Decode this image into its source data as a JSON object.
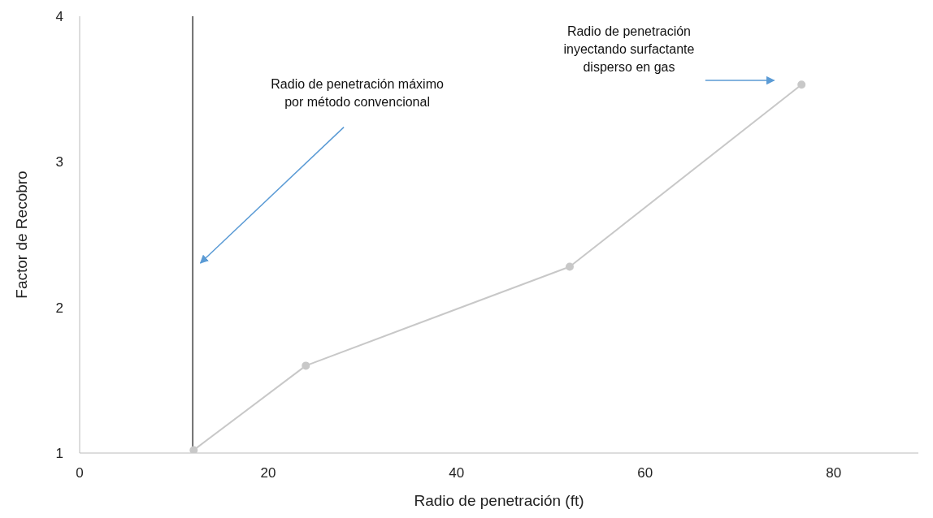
{
  "chart_data": {
    "type": "line",
    "xlabel": "Radio de penetración (ft)",
    "ylabel": "Factor de Recobro",
    "x": [
      12.1,
      24,
      52,
      76.6
    ],
    "series": [
      {
        "color": "#c8c8c8",
        "values": [
          1.02,
          1.6,
          2.28,
          3.53
        ]
      }
    ],
    "xlim": [
      0,
      89
    ],
    "xticks": [
      0,
      20,
      40,
      60,
      80
    ],
    "ylim": [
      1,
      4
    ],
    "yticks": [
      1,
      2,
      3,
      4
    ],
    "grid": false,
    "legend": false,
    "marker": "circle",
    "line_style": "solid",
    "ref_lines": [
      {
        "axis": "x",
        "value": 12,
        "color": "#404040"
      }
    ],
    "annotations": [
      "Radio de penetración máximo\npor método convencional",
      "Radio de penetración\ninyectando surfactante\ndisperso en gas"
    ]
  }
}
